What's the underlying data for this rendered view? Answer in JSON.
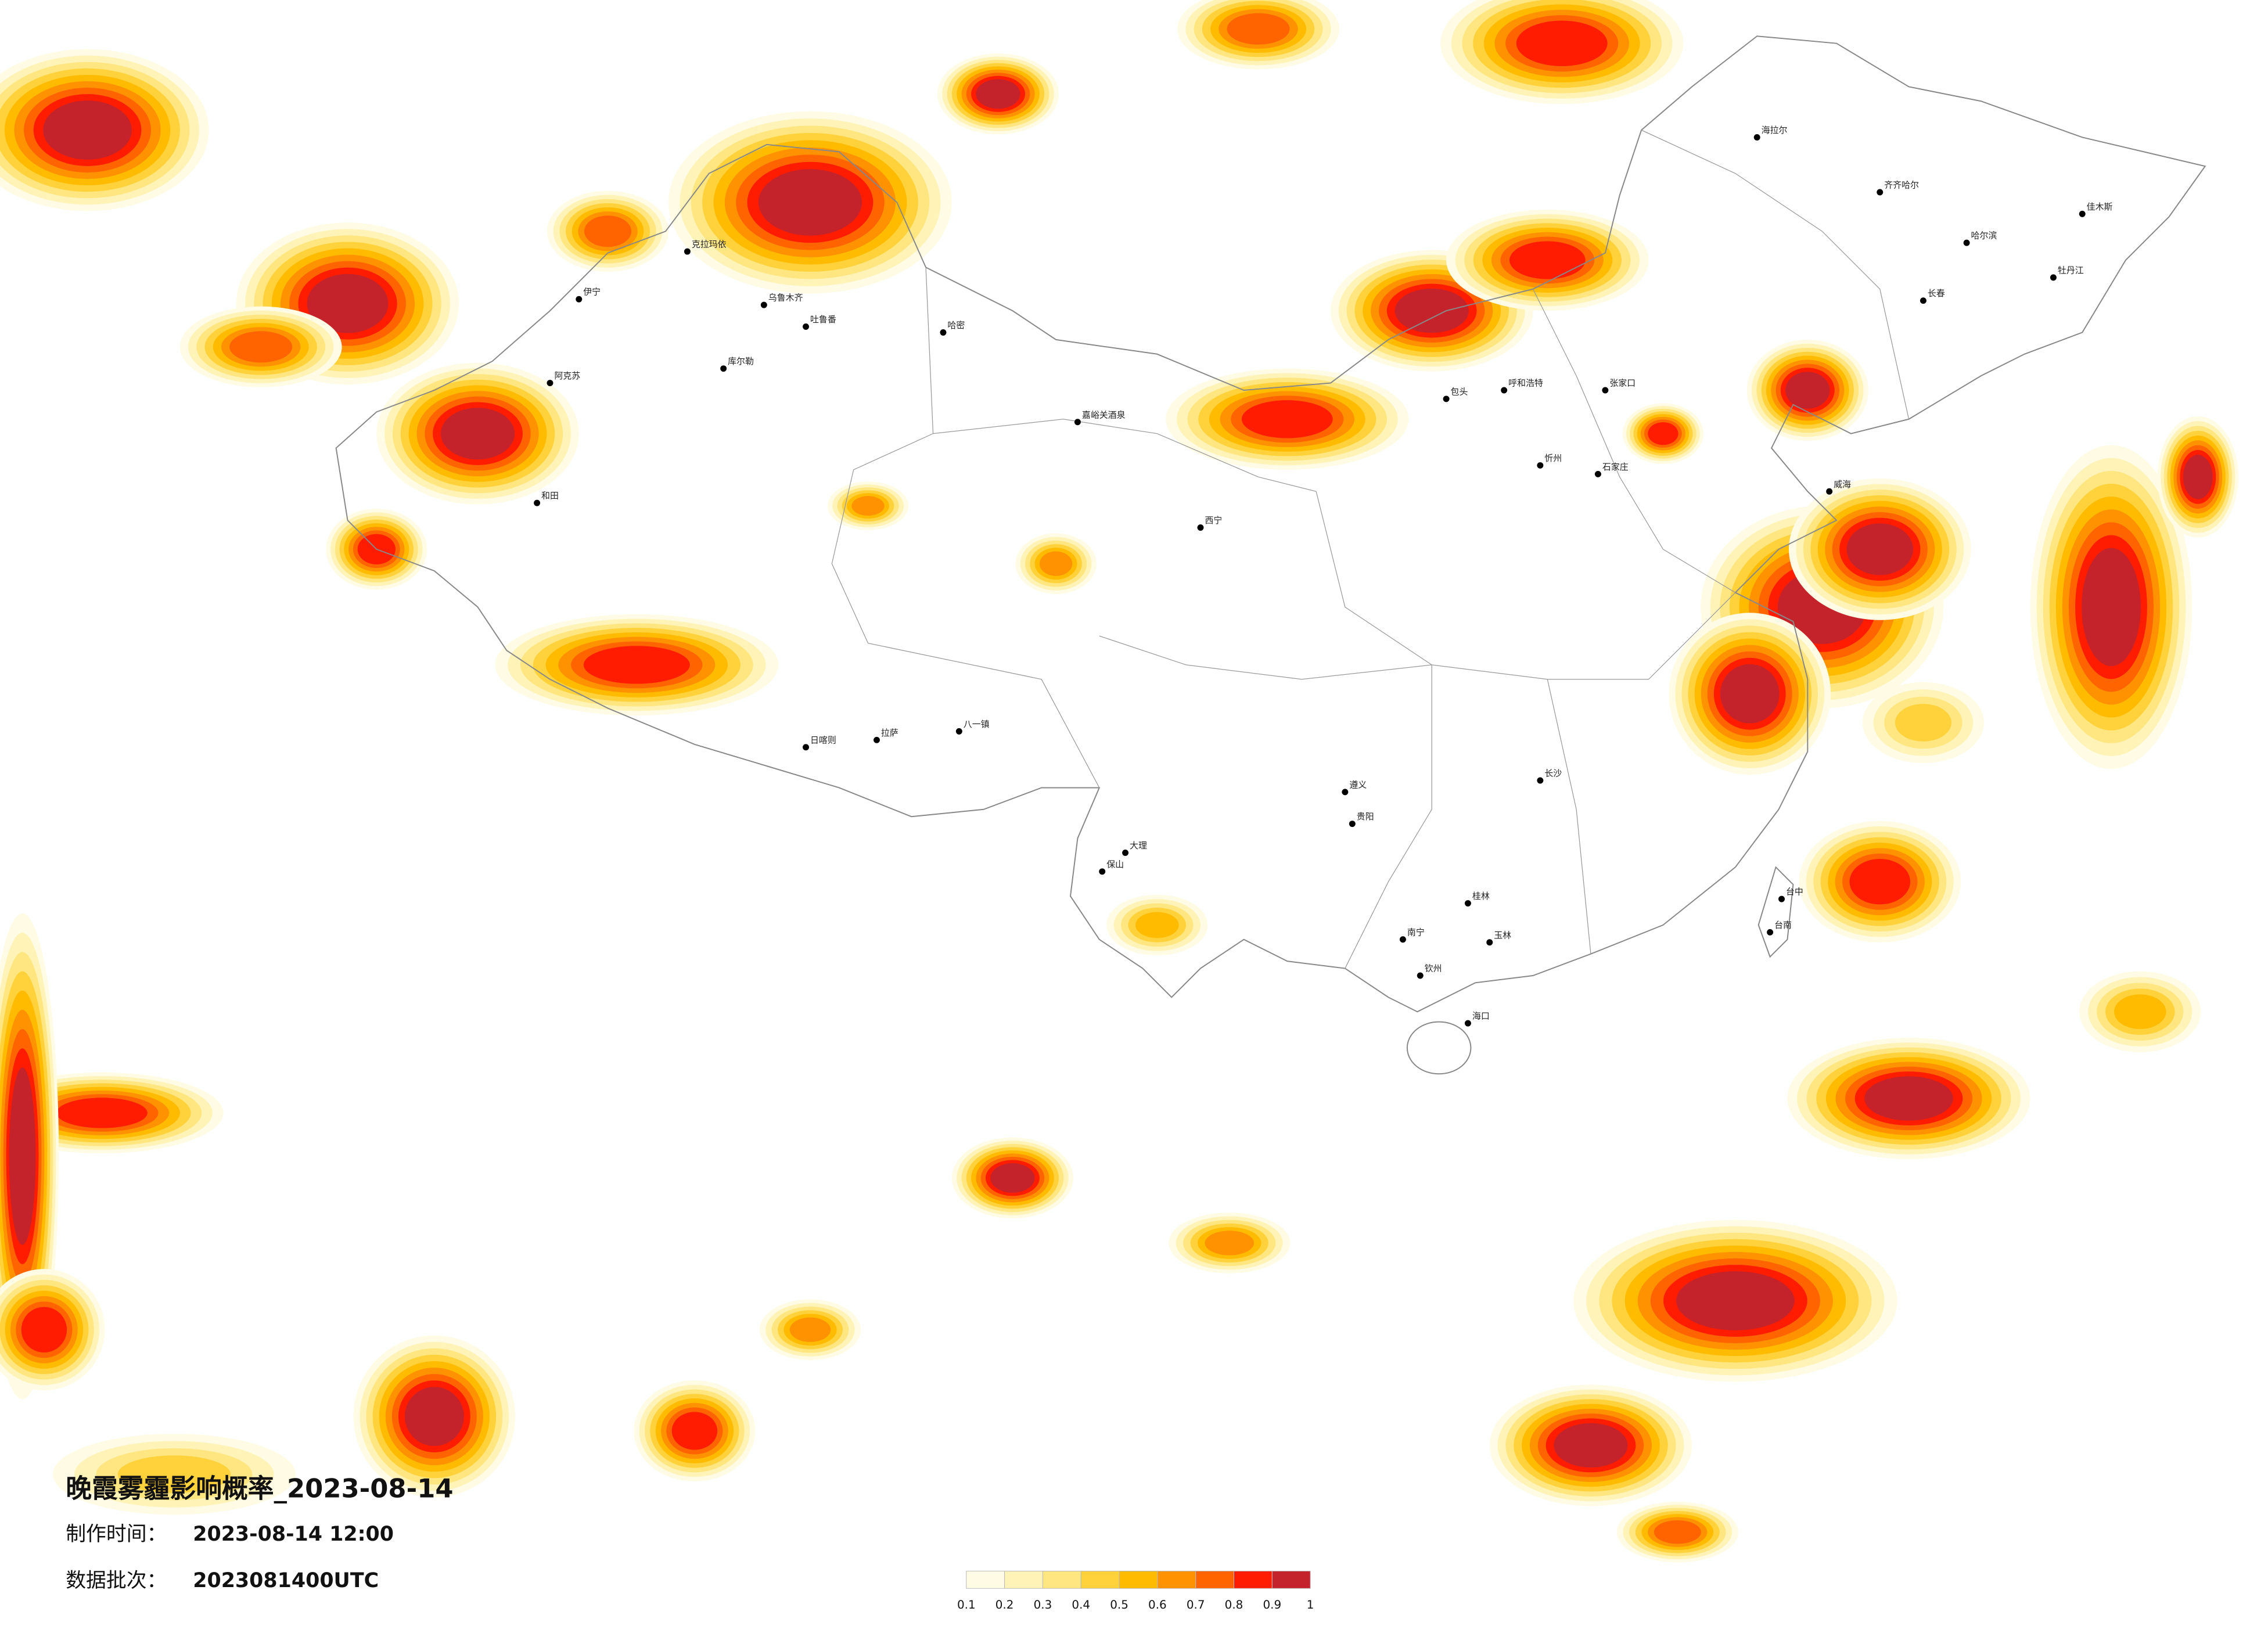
{
  "title": "晚霞雾霾影响概率_2023-08-14",
  "production_time": {
    "label": "制作时间：",
    "value": "2023-08-14 12:00"
  },
  "batch": {
    "label": "数据批次：",
    "value": "2023081400UTC"
  },
  "legend": {
    "colors": [
      "#fffbe4",
      "#fff3b8",
      "#ffe680",
      "#ffd23c",
      "#ffbb00",
      "#ff9200",
      "#ff6400",
      "#ff1c00",
      "#c5232b"
    ],
    "ticks": [
      0.1,
      0.2,
      0.3,
      0.4,
      0.5,
      0.6,
      0.7,
      0.8,
      0.9,
      1
    ]
  },
  "cities": [
    "克拉玛依",
    "乌鲁木齐",
    "吐鲁番",
    "哈密",
    "库尔勒",
    "阿克苏",
    "和田",
    "伊宁",
    "嘉峪关酒泉",
    "拉萨",
    "日喀则",
    "八一镇",
    "西宁",
    "呼和浩特",
    "包头",
    "张家口",
    "石家庄",
    "忻州",
    "海拉尔",
    "齐齐哈尔",
    "哈尔滨",
    "长春",
    "佳木斯",
    "牡丹江",
    "威海",
    "台中",
    "台南",
    "海口",
    "大理",
    "保山",
    "南宁",
    "钦州",
    "玉林",
    "贵阳",
    "遵义",
    "长沙",
    "桂林"
  ]
}
